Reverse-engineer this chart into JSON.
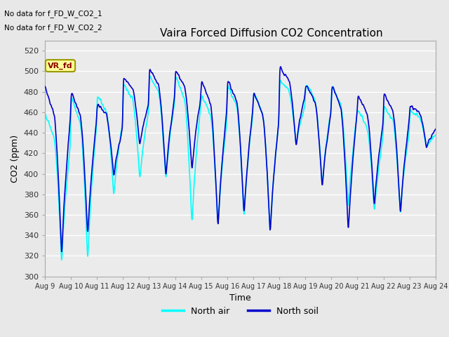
{
  "title": "Vaira Forced Diffusion CO2 Concentration",
  "xlabel": "Time",
  "ylabel": "CO2 (ppm)",
  "ylim": [
    300,
    530
  ],
  "yticks": [
    300,
    320,
    340,
    360,
    380,
    400,
    420,
    440,
    460,
    480,
    500,
    520
  ],
  "xtick_labels": [
    "Aug 9",
    "Aug 10",
    "Aug 11",
    "Aug 12",
    "Aug 13",
    "Aug 14",
    "Aug 15",
    "Aug 16",
    "Aug 17",
    "Aug 18",
    "Aug 19",
    "Aug 20",
    "Aug 21",
    "Aug 22",
    "Aug 23",
    "Aug 24"
  ],
  "soil_color": "#0000CD",
  "air_color": "#00FFFF",
  "legend_soil": "North soil",
  "legend_air": "North air",
  "no_data_text1": "No data for f_FD_W_CO2_1",
  "no_data_text2": "No data for f_FD_W_CO2_2",
  "annotation_text": "VR_fd",
  "plot_bg_color": "#EBEBEB",
  "soil_lw": 1.2,
  "air_lw": 1.2,
  "figsize": [
    6.4,
    4.8
  ],
  "dpi": 100
}
